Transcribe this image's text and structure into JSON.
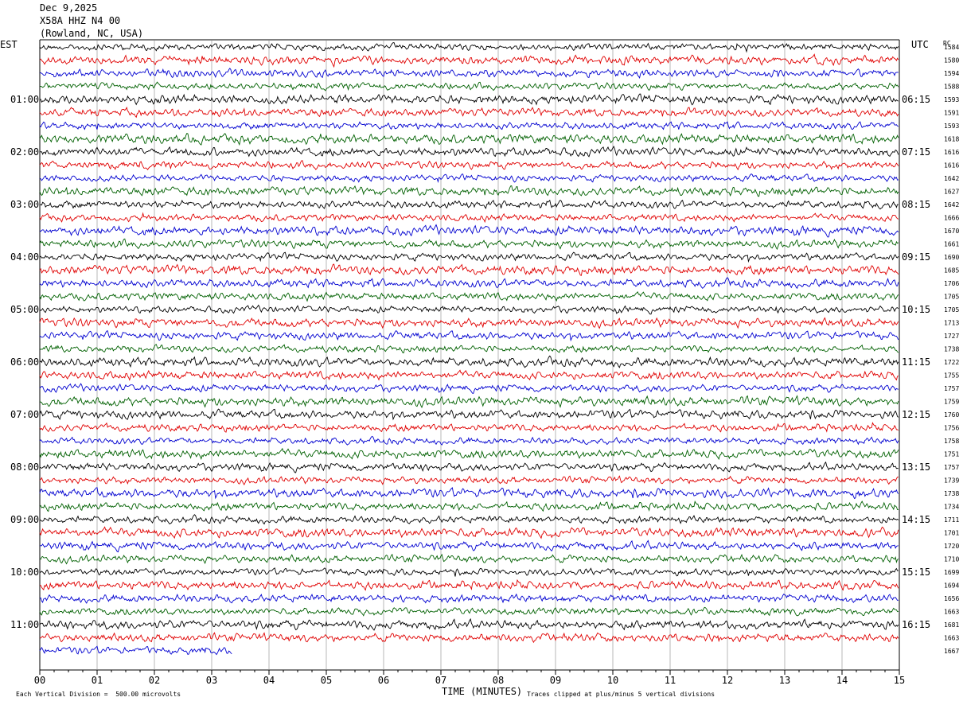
{
  "header": {
    "date": "Dec 9,2025",
    "station": "X58A HHZ N4 00",
    "location": "(Rowland, NC, USA)"
  },
  "left_timezone": "EST",
  "right_timezone": "UTC",
  "rms_header": "RC",
  "footer": {
    "scale_note": "Each Vertical Division =  500.00 microvolts",
    "clip_note": "Traces clipped at plus/minus 5 vertical divisions"
  },
  "colors": {
    "trace": [
      "#000000",
      "#e00000",
      "#0000d0",
      "#006000"
    ],
    "grid": "#888888"
  },
  "chart_data": {
    "type": "line",
    "title": "",
    "xlabel": "TIME (MINUTES)",
    "ylabel": "",
    "x_ticks": [
      "00",
      "01",
      "02",
      "03",
      "04",
      "05",
      "06",
      "07",
      "08",
      "09",
      "10",
      "11",
      "12",
      "13",
      "14",
      "15"
    ],
    "xlim": [
      0,
      15
    ],
    "grid": "vertical minute lines",
    "rows_per_hour": 4,
    "row_minutes": 15,
    "est_labels": [
      "01:00",
      "02:00",
      "03:00",
      "04:00",
      "05:00",
      "06:00",
      "07:00",
      "08:00",
      "09:00",
      "10:00",
      "11:00"
    ],
    "utc_labels": [
      "06:15",
      "07:15",
      "08:15",
      "09:15",
      "10:15",
      "11:15",
      "12:15",
      "13:15",
      "14:15",
      "15:15",
      "16:15"
    ],
    "row_values": [
      1584,
      1580,
      1594,
      1588,
      1593,
      1591,
      1593,
      1618,
      1616,
      1616,
      1642,
      1627,
      1642,
      1666,
      1670,
      1661,
      1690,
      1685,
      1706,
      1705,
      1705,
      1713,
      1727,
      1738,
      1722,
      1755,
      1757,
      1759,
      1760,
      1756,
      1758,
      1751,
      1757,
      1739,
      1738,
      1734,
      1711,
      1701,
      1720,
      1710,
      1699,
      1694,
      1656,
      1663,
      1681,
      1663,
      1667
    ],
    "last_row_end_minute": 3.35
  }
}
